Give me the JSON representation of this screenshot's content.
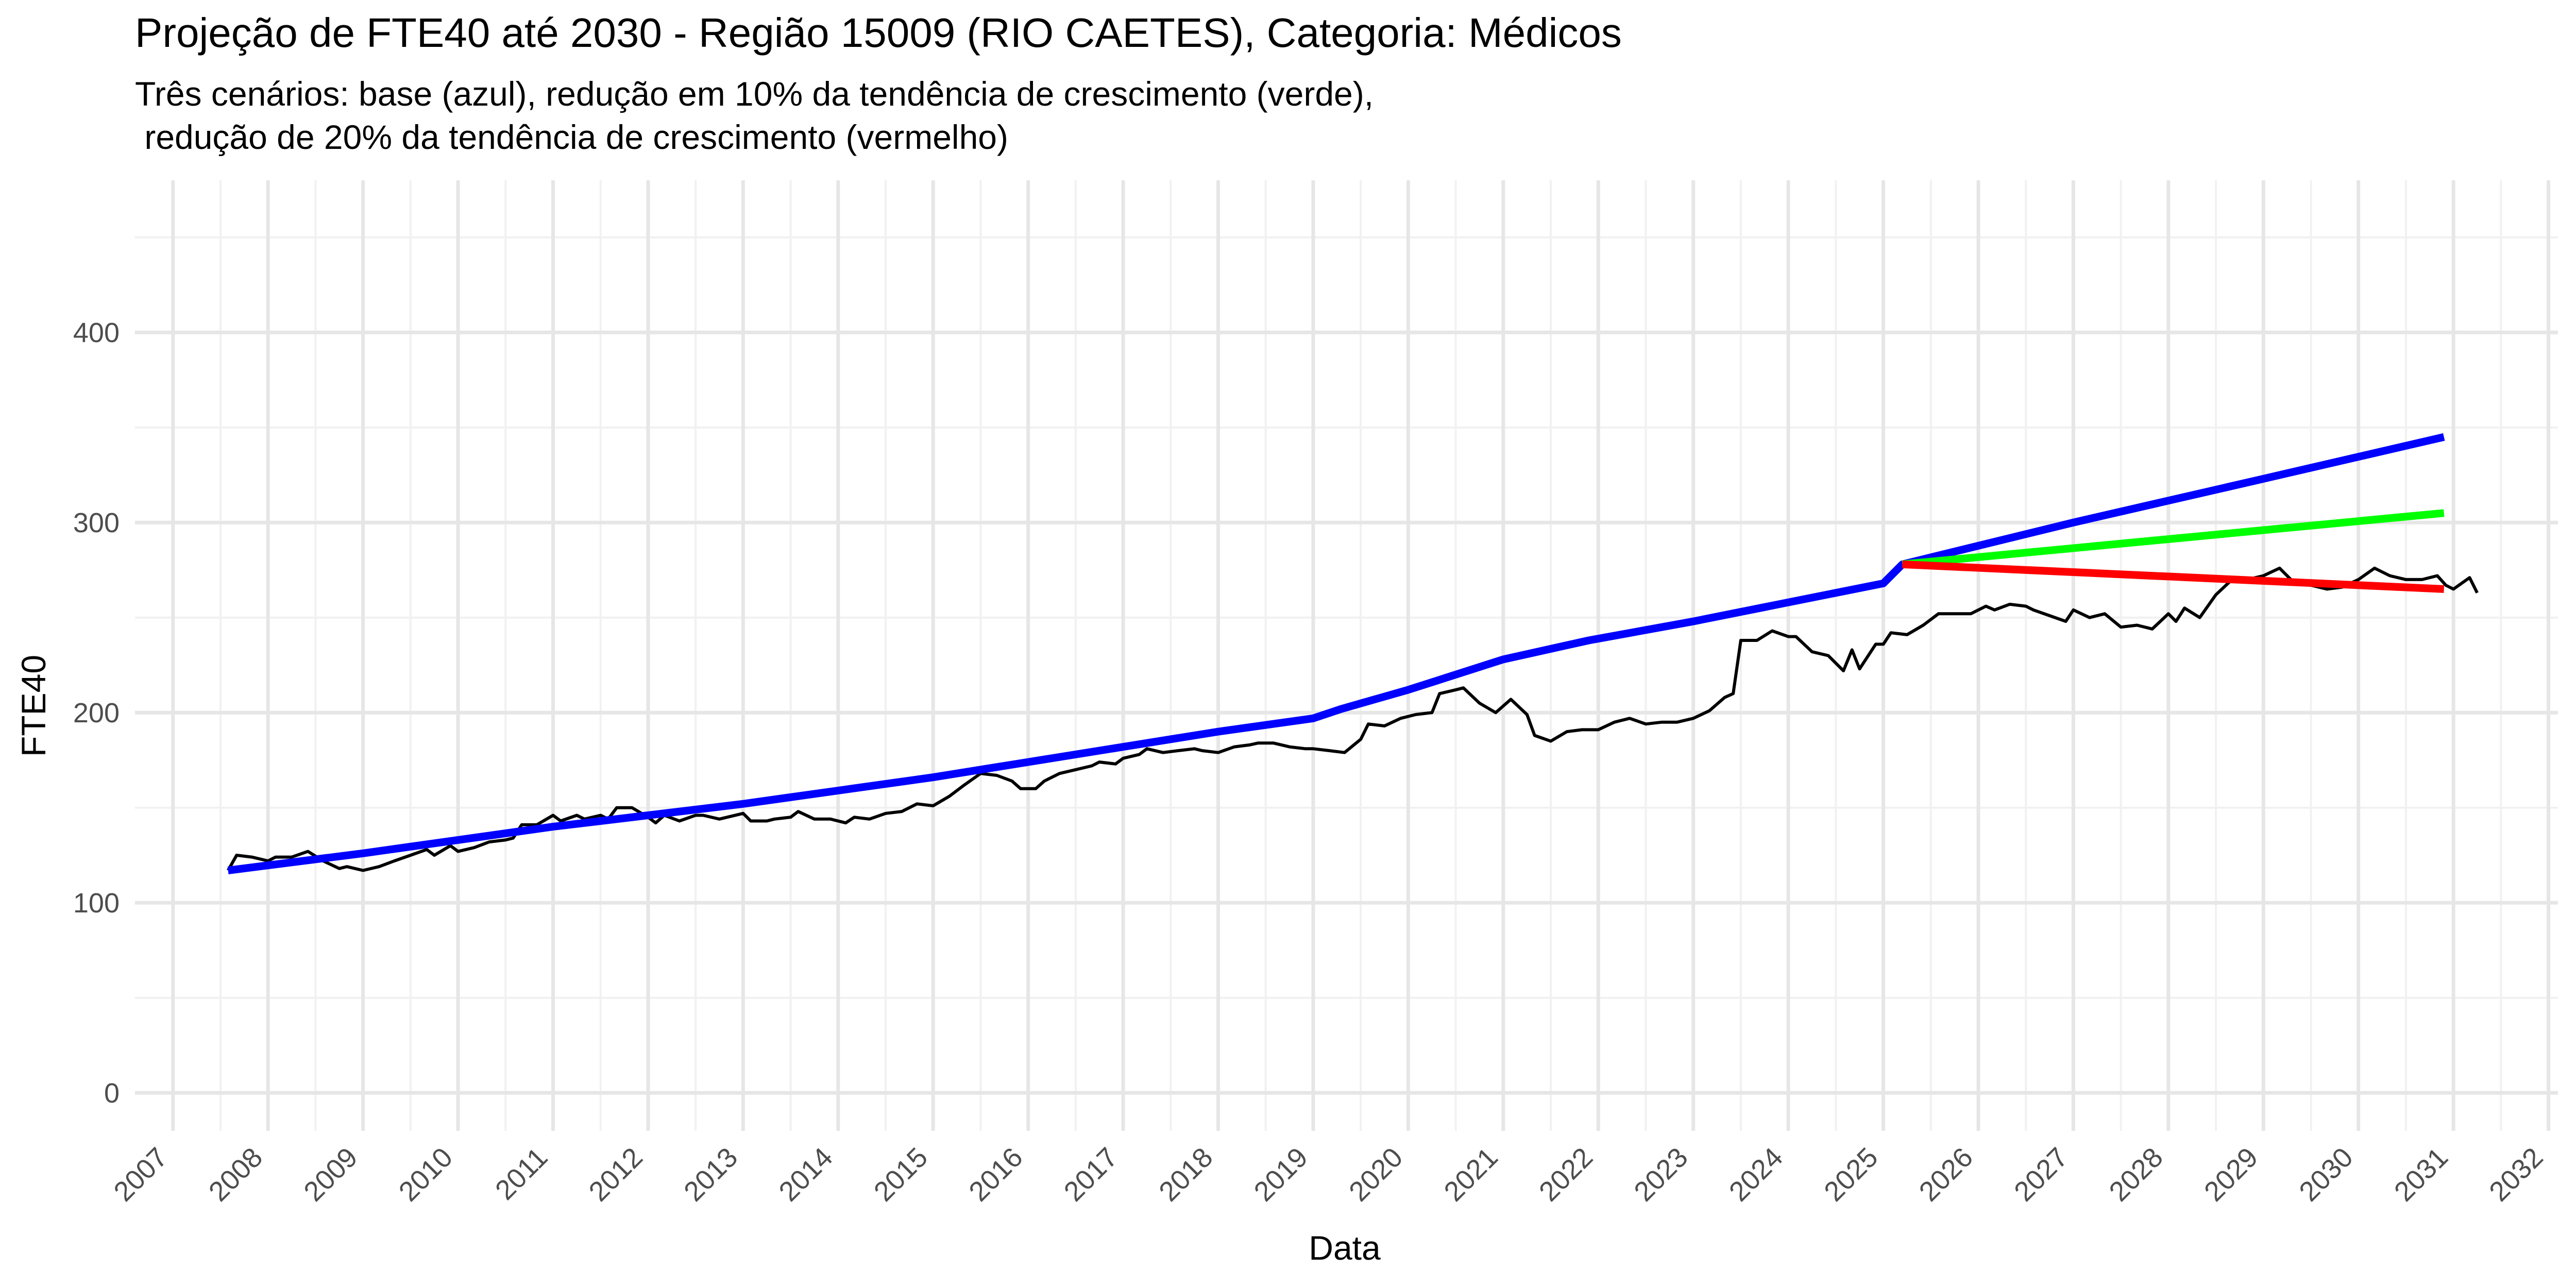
{
  "chart_data": {
    "type": "line",
    "title": "Projeção de FTE40 até 2030 - Região 15009 (RIO CAETES), Categoria: Médicos",
    "subtitle": "Três cenários: base (azul), redução em 10% da tendência de crescimento (verde),\n redução de 20% da tendência de crescimento (vermelho)",
    "xlabel": "Data",
    "ylabel": "FTE40",
    "xlim": [
      2006.6,
      2032.1
    ],
    "ylim": [
      -20,
      480
    ],
    "x_ticks": [
      "2007",
      "2008",
      "2009",
      "2010",
      "2011",
      "2012",
      "2013",
      "2014",
      "2015",
      "2016",
      "2017",
      "2018",
      "2019",
      "2020",
      "2021",
      "2022",
      "2023",
      "2024",
      "2025",
      "2026",
      "2027",
      "2028",
      "2029",
      "2030",
      "2031",
      "2032"
    ],
    "y_ticks": [
      "0",
      "100",
      "200",
      "300",
      "400"
    ],
    "grid": true,
    "legend": "none",
    "series": [
      {
        "color": "#000000",
        "points": [
          [
            2007.58,
            117
          ],
          [
            2007.67,
            125
          ],
          [
            2007.83,
            124
          ],
          [
            2008.0,
            122
          ],
          [
            2008.08,
            124
          ],
          [
            2008.25,
            124
          ],
          [
            2008.42,
            127
          ],
          [
            2008.58,
            122
          ],
          [
            2008.75,
            118
          ],
          [
            2008.83,
            119
          ],
          [
            2009.0,
            117
          ],
          [
            2009.17,
            119
          ],
          [
            2009.33,
            122
          ],
          [
            2009.5,
            125
          ],
          [
            2009.67,
            128
          ],
          [
            2009.75,
            125
          ],
          [
            2009.92,
            130
          ],
          [
            2010.0,
            127
          ],
          [
            2010.17,
            129
          ],
          [
            2010.33,
            132
          ],
          [
            2010.5,
            133
          ],
          [
            2010.58,
            134
          ],
          [
            2010.67,
            141
          ],
          [
            2010.83,
            141
          ],
          [
            2011.0,
            146
          ],
          [
            2011.08,
            143
          ],
          [
            2011.25,
            146
          ],
          [
            2011.33,
            144
          ],
          [
            2011.5,
            146
          ],
          [
            2011.58,
            144
          ],
          [
            2011.67,
            150
          ],
          [
            2011.83,
            150
          ],
          [
            2012.0,
            145
          ],
          [
            2012.08,
            142
          ],
          [
            2012.17,
            146
          ],
          [
            2012.33,
            143
          ],
          [
            2012.5,
            146
          ],
          [
            2012.58,
            146
          ],
          [
            2012.75,
            144
          ],
          [
            2013.0,
            147
          ],
          [
            2013.08,
            143
          ],
          [
            2013.25,
            143
          ],
          [
            2013.33,
            144
          ],
          [
            2013.5,
            145
          ],
          [
            2013.58,
            148
          ],
          [
            2013.75,
            144
          ],
          [
            2013.92,
            144
          ],
          [
            2014.08,
            142
          ],
          [
            2014.17,
            145
          ],
          [
            2014.33,
            144
          ],
          [
            2014.5,
            147
          ],
          [
            2014.67,
            148
          ],
          [
            2014.83,
            152
          ],
          [
            2015.0,
            151
          ],
          [
            2015.17,
            156
          ],
          [
            2015.33,
            162
          ],
          [
            2015.5,
            168
          ],
          [
            2015.67,
            167
          ],
          [
            2015.83,
            164
          ],
          [
            2015.92,
            160
          ],
          [
            2016.08,
            160
          ],
          [
            2016.17,
            164
          ],
          [
            2016.33,
            168
          ],
          [
            2016.5,
            170
          ],
          [
            2016.67,
            172
          ],
          [
            2016.75,
            174
          ],
          [
            2016.92,
            173
          ],
          [
            2017.0,
            176
          ],
          [
            2017.17,
            178
          ],
          [
            2017.25,
            181
          ],
          [
            2017.42,
            179
          ],
          [
            2017.58,
            180
          ],
          [
            2017.75,
            181
          ],
          [
            2017.83,
            180
          ],
          [
            2018.0,
            179
          ],
          [
            2018.17,
            182
          ],
          [
            2018.33,
            183
          ],
          [
            2018.42,
            184
          ],
          [
            2018.58,
            184
          ],
          [
            2018.75,
            182
          ],
          [
            2018.92,
            181
          ],
          [
            2019.0,
            181
          ],
          [
            2019.17,
            180
          ],
          [
            2019.33,
            179
          ],
          [
            2019.5,
            186
          ],
          [
            2019.58,
            194
          ],
          [
            2019.75,
            193
          ],
          [
            2019.92,
            197
          ],
          [
            2020.08,
            199
          ],
          [
            2020.25,
            200
          ],
          [
            2020.33,
            210
          ],
          [
            2020.5,
            212
          ],
          [
            2020.58,
            213
          ],
          [
            2020.75,
            205
          ],
          [
            2020.92,
            200
          ],
          [
            2021.08,
            207
          ],
          [
            2021.25,
            199
          ],
          [
            2021.33,
            188
          ],
          [
            2021.5,
            185
          ],
          [
            2021.67,
            190
          ],
          [
            2021.83,
            191
          ],
          [
            2022.0,
            191
          ],
          [
            2022.17,
            195
          ],
          [
            2022.33,
            197
          ],
          [
            2022.5,
            194
          ],
          [
            2022.67,
            195
          ],
          [
            2022.83,
            195
          ],
          [
            2023.0,
            197
          ],
          [
            2023.17,
            201
          ],
          [
            2023.33,
            208
          ],
          [
            2023.42,
            210
          ],
          [
            2023.5,
            238
          ],
          [
            2023.67,
            238
          ],
          [
            2023.83,
            243
          ],
          [
            2024.0,
            240
          ],
          [
            2024.08,
            240
          ],
          [
            2024.25,
            232
          ],
          [
            2024.42,
            230
          ],
          [
            2024.58,
            222
          ],
          [
            2024.67,
            233
          ],
          [
            2024.75,
            223
          ],
          [
            2024.92,
            236
          ],
          [
            2025.0,
            236
          ],
          [
            2025.08,
            242
          ],
          [
            2025.25,
            241
          ],
          [
            2025.42,
            246
          ],
          [
            2025.58,
            252
          ],
          [
            2025.75,
            252
          ],
          [
            2025.92,
            252
          ],
          [
            2026.08,
            256
          ],
          [
            2026.17,
            254
          ],
          [
            2026.33,
            257
          ],
          [
            2026.5,
            256
          ],
          [
            2026.58,
            254
          ],
          [
            2026.75,
            251
          ],
          [
            2026.92,
            248
          ],
          [
            2027.0,
            254
          ],
          [
            2027.17,
            250
          ],
          [
            2027.33,
            252
          ],
          [
            2027.5,
            245
          ],
          [
            2027.67,
            246
          ],
          [
            2027.83,
            244
          ],
          [
            2028.0,
            252
          ],
          [
            2028.08,
            248
          ],
          [
            2028.17,
            255
          ],
          [
            2028.33,
            250
          ],
          [
            2028.5,
            262
          ],
          [
            2028.67,
            270
          ],
          [
            2028.83,
            270
          ],
          [
            2029.0,
            272
          ],
          [
            2029.17,
            276
          ],
          [
            2029.33,
            268
          ],
          [
            2029.5,
            267
          ],
          [
            2029.67,
            265
          ],
          [
            2029.83,
            266
          ],
          [
            2030.0,
            270
          ],
          [
            2030.17,
            276
          ],
          [
            2030.33,
            272
          ],
          [
            2030.5,
            270
          ],
          [
            2030.67,
            270
          ],
          [
            2030.83,
            272
          ],
          [
            2030.92,
            267
          ],
          [
            2031.0,
            265
          ],
          [
            2031.17,
            271
          ],
          [
            2031.25,
            263
          ]
        ]
      },
      {
        "color": "#0000ff",
        "points": [
          [
            2007.58,
            117
          ],
          [
            2009.0,
            126
          ],
          [
            2010.0,
            133
          ],
          [
            2011.0,
            140
          ],
          [
            2012.0,
            146
          ],
          [
            2013.0,
            152
          ],
          [
            2014.0,
            159
          ],
          [
            2015.0,
            166
          ],
          [
            2016.0,
            174
          ],
          [
            2017.0,
            182
          ],
          [
            2018.0,
            190
          ],
          [
            2019.0,
            197
          ],
          [
            2019.3,
            202
          ],
          [
            2020.0,
            212
          ],
          [
            2021.0,
            228
          ],
          [
            2021.9,
            238
          ],
          [
            2023.0,
            248
          ],
          [
            2024.0,
            258
          ],
          [
            2025.0,
            268
          ],
          [
            2025.2,
            278
          ],
          [
            2027.0,
            300
          ],
          [
            2029.0,
            323
          ],
          [
            2030.9,
            345
          ]
        ]
      },
      {
        "color": "#00ff00",
        "points": [
          [
            2025.2,
            278
          ],
          [
            2030.9,
            305
          ]
        ]
      },
      {
        "color": "#ff0000",
        "points": [
          [
            2025.2,
            278
          ],
          [
            2030.9,
            265
          ]
        ]
      }
    ]
  }
}
